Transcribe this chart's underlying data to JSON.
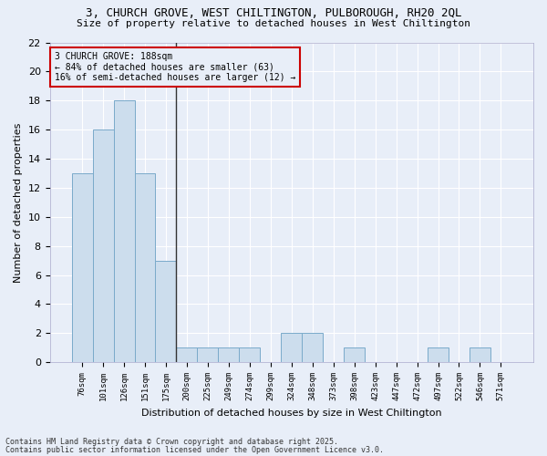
{
  "title1": "3, CHURCH GROVE, WEST CHILTINGTON, PULBOROUGH, RH20 2QL",
  "title2": "Size of property relative to detached houses in West Chiltington",
  "xlabel": "Distribution of detached houses by size in West Chiltington",
  "ylabel": "Number of detached properties",
  "bar_color": "#ccdded",
  "bar_edge_color": "#7aaaca",
  "categories": [
    "76sqm",
    "101sqm",
    "126sqm",
    "151sqm",
    "175sqm",
    "200sqm",
    "225sqm",
    "249sqm",
    "274sqm",
    "299sqm",
    "324sqm",
    "348sqm",
    "373sqm",
    "398sqm",
    "423sqm",
    "447sqm",
    "472sqm",
    "497sqm",
    "522sqm",
    "546sqm",
    "571sqm"
  ],
  "values": [
    13,
    16,
    18,
    13,
    7,
    1,
    1,
    1,
    1,
    0,
    2,
    2,
    0,
    1,
    0,
    0,
    0,
    1,
    0,
    1,
    0
  ],
  "ylim": [
    0,
    22
  ],
  "yticks": [
    0,
    2,
    4,
    6,
    8,
    10,
    12,
    14,
    16,
    18,
    20,
    22
  ],
  "annotation_text": "3 CHURCH GROVE: 188sqm\n← 84% of detached houses are smaller (63)\n16% of semi-detached houses are larger (12) →",
  "bg_color": "#e8eef8",
  "grid_color": "#ffffff",
  "vline_color": "#333333",
  "annotation_edge_color": "#cc0000",
  "footer1": "Contains HM Land Registry data © Crown copyright and database right 2025.",
  "footer2": "Contains public sector information licensed under the Open Government Licence v3.0."
}
